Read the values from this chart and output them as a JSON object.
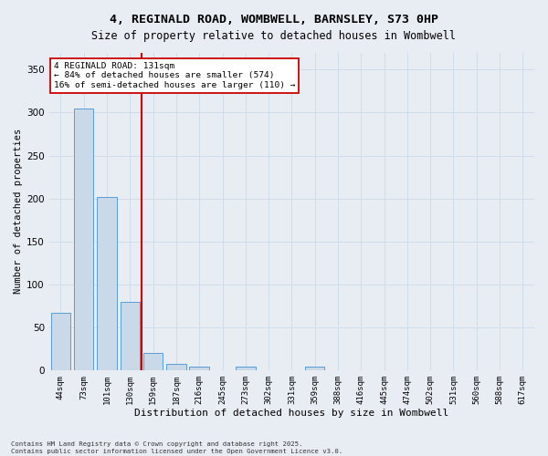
{
  "title_line1": "4, REGINALD ROAD, WOMBWELL, BARNSLEY, S73 0HP",
  "title_line2": "Size of property relative to detached houses in Wombwell",
  "xlabel": "Distribution of detached houses by size in Wombwell",
  "ylabel": "Number of detached properties",
  "categories": [
    "44sqm",
    "73sqm",
    "101sqm",
    "130sqm",
    "159sqm",
    "187sqm",
    "216sqm",
    "245sqm",
    "273sqm",
    "302sqm",
    "331sqm",
    "359sqm",
    "388sqm",
    "416sqm",
    "445sqm",
    "474sqm",
    "502sqm",
    "531sqm",
    "560sqm",
    "588sqm",
    "617sqm"
  ],
  "values": [
    67,
    305,
    202,
    80,
    20,
    8,
    5,
    0,
    5,
    0,
    0,
    5,
    0,
    0,
    0,
    0,
    0,
    0,
    0,
    0,
    0
  ],
  "bar_color": "#c9d9e8",
  "bar_edge_color": "#5b9bd5",
  "red_line_x": 3.5,
  "red_line_label": "4 REGINALD ROAD: 131sqm",
  "annotation_line2": "← 84% of detached houses are smaller (574)",
  "annotation_line3": "16% of semi-detached houses are larger (110) →",
  "annotation_box_color": "#ffffff",
  "annotation_box_edge": "#cc0000",
  "red_line_color": "#cc0000",
  "grid_color": "#d0dcea",
  "background_color": "#e8edf4",
  "ylim": [
    0,
    370
  ],
  "yticks": [
    0,
    50,
    100,
    150,
    200,
    250,
    300,
    350
  ],
  "footer_line1": "Contains HM Land Registry data © Crown copyright and database right 2025.",
  "footer_line2": "Contains public sector information licensed under the Open Government Licence v3.0."
}
